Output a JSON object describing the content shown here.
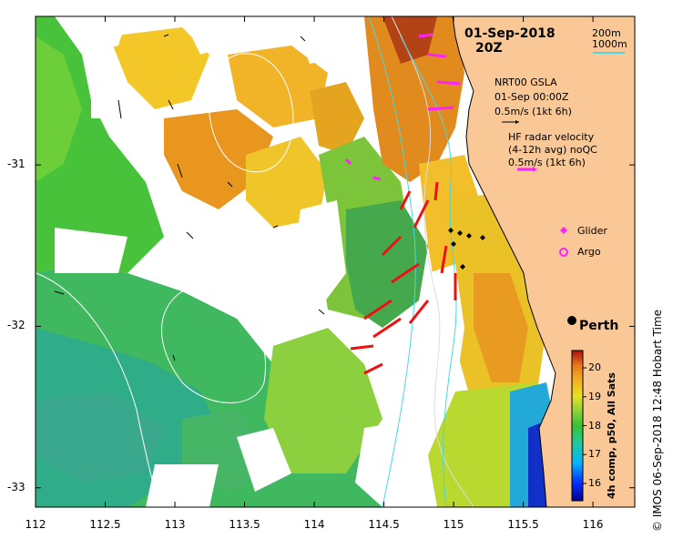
{
  "title": {
    "date": "01-Sep-2018",
    "time": "20Z"
  },
  "depth_legend": {
    "contour_200": "200m",
    "contour_1000": "1000m",
    "color_200": "#dddddd",
    "color_1000": "#48d8e0"
  },
  "gsla_legend": {
    "line1": "NRT00 GSLA",
    "line2": "01-Sep 00:00Z",
    "scale": "0.5m/s (1kt 6h)"
  },
  "radar_legend": {
    "line1": "HF radar velocity",
    "line2": "(4-12h avg) noQC",
    "scale": "0.5m/s (1kt 6h)",
    "arrow_color": "#ff22ff"
  },
  "markers": {
    "glider": "Glider",
    "argo": "Argo",
    "glider_color": "#ff22ff",
    "argo_color": "#ff22ff"
  },
  "city": {
    "name": "Perth",
    "lon": 115.86,
    "lat": -31.95
  },
  "axes": {
    "x_ticks": [
      "112",
      "112.5",
      "113",
      "113.5",
      "114",
      "114.5",
      "115",
      "115.5",
      "116"
    ],
    "x_values": [
      112,
      112.5,
      113,
      113.5,
      114,
      114.5,
      115,
      115.5,
      116
    ],
    "y_ticks": [
      "-31",
      "-32",
      "-33"
    ],
    "y_values": [
      -31,
      -32,
      -33
    ],
    "lon_range": [
      112,
      116.3
    ],
    "lat_range": [
      -30.08,
      -33.12
    ]
  },
  "colorbar": {
    "title": "4h comp, p50, All Sats",
    "ticks": [
      "16",
      "17",
      "18",
      "19",
      "20"
    ],
    "tick_values": [
      16,
      17,
      18,
      19,
      20
    ],
    "range": [
      15.4,
      20.6
    ]
  },
  "copyright": "© IMOS 06-Sep-2018 12:48 Hobart Time",
  "colors": {
    "land": "#f9c896",
    "coast": "#000000",
    "frame": "#000000"
  }
}
